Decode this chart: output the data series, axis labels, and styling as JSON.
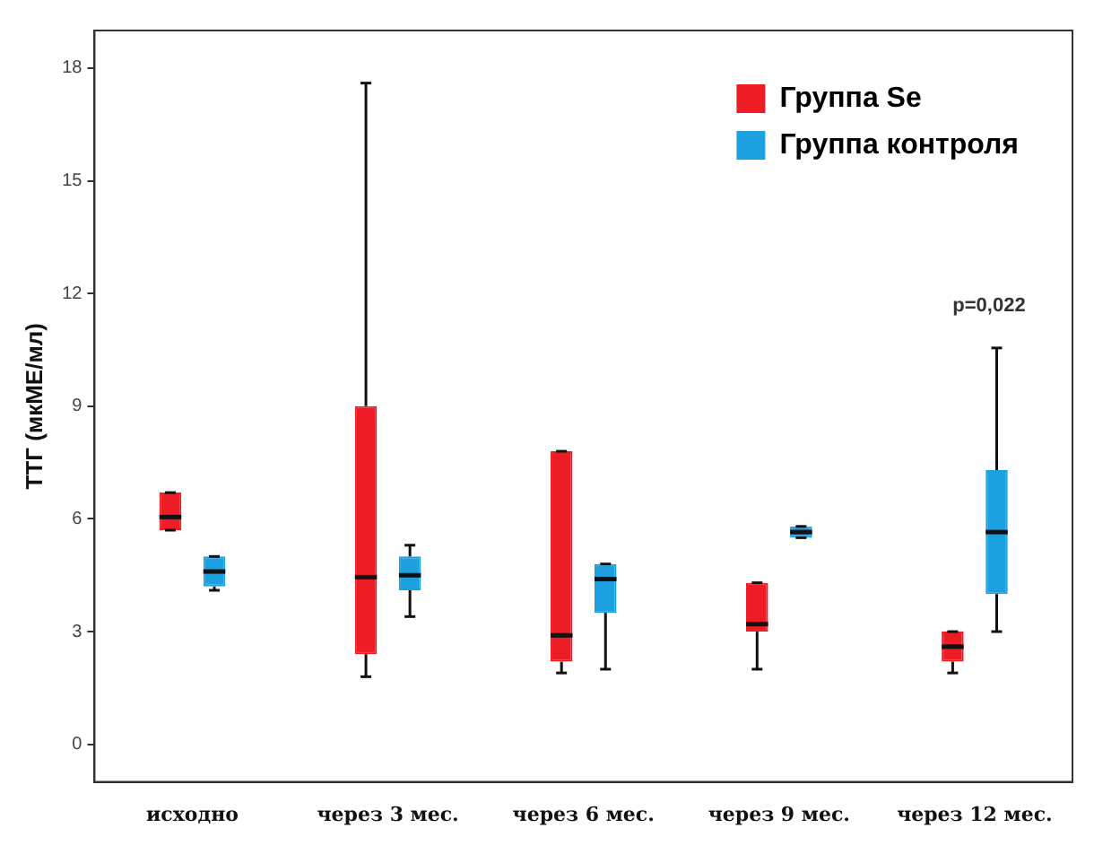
{
  "chart_data": {
    "type": "box",
    "ylabel": "ТТГ (мкМЕ/мл)",
    "categories": [
      "исходно",
      "через 3 мес.",
      "через 6 мес.",
      "через 9 мес.",
      "через 12 мес."
    ],
    "series": [
      {
        "name": "Группа Se",
        "color": "#ee1c25",
        "boxes": [
          {
            "low": 5.7,
            "q1": 5.7,
            "median": 6.05,
            "q3": 6.7,
            "high": 6.7
          },
          {
            "low": 1.8,
            "q1": 2.4,
            "median": 4.45,
            "q3": 9.0,
            "high": 17.6
          },
          {
            "low": 1.9,
            "q1": 2.2,
            "median": 2.9,
            "q3": 7.8,
            "high": 7.8
          },
          {
            "low": 2.0,
            "q1": 3.0,
            "median": 3.2,
            "q3": 4.3,
            "high": 4.3
          },
          {
            "low": 1.9,
            "q1": 2.2,
            "median": 2.6,
            "q3": 3.0,
            "high": 3.0
          }
        ]
      },
      {
        "name": "Группа контроля",
        "color": "#1ca0e0",
        "boxes": [
          {
            "low": 4.1,
            "q1": 4.2,
            "median": 4.6,
            "q3": 5.0,
            "high": 5.0
          },
          {
            "low": 3.4,
            "q1": 4.1,
            "median": 4.5,
            "q3": 5.0,
            "high": 5.3
          },
          {
            "low": 2.0,
            "q1": 3.5,
            "median": 4.4,
            "q3": 4.8,
            "high": 4.8
          },
          {
            "low": 5.5,
            "q1": 5.5,
            "median": 5.65,
            "q3": 5.8,
            "high": 5.8
          },
          {
            "low": 3.0,
            "q1": 4.0,
            "median": 5.65,
            "q3": 7.3,
            "high": 10.55
          }
        ]
      }
    ],
    "ylim": [
      -1,
      19
    ],
    "yticks": [
      0,
      3,
      6,
      9,
      12,
      15,
      18
    ],
    "grid": false,
    "legend": "top right",
    "annotations": [
      "p=0,022"
    ]
  }
}
